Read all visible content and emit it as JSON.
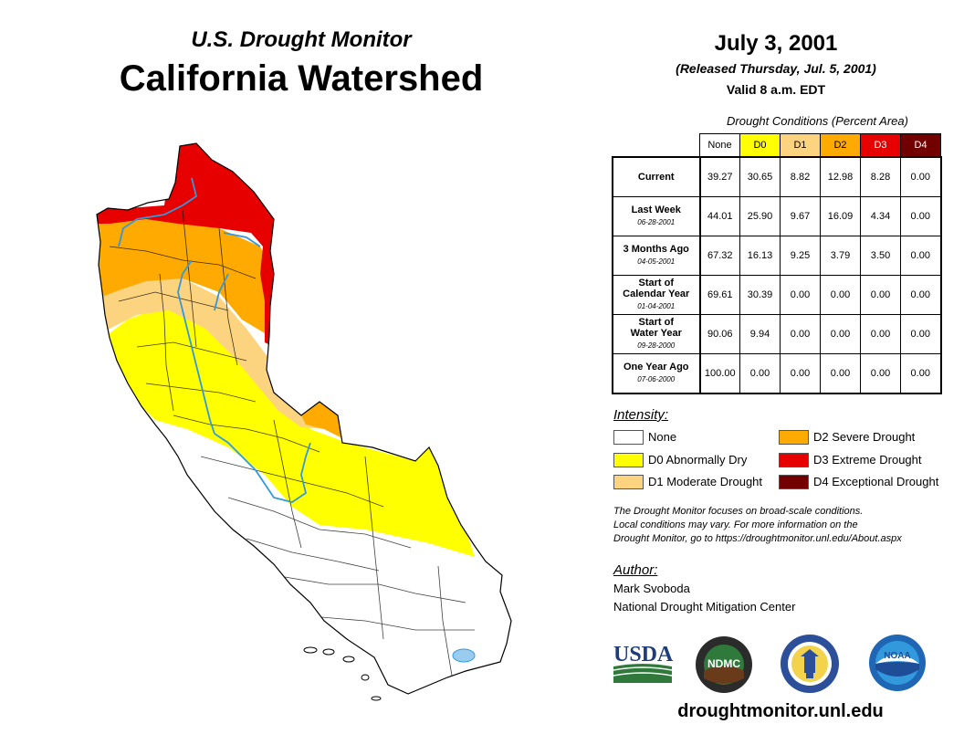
{
  "header": {
    "subtitle": "U.S. Drought Monitor",
    "title": "California Watershed",
    "date": "July 3, 2001",
    "released": "(Released Thursday, Jul. 5, 2001)",
    "valid": "Valid 8 a.m. EDT"
  },
  "conditions": {
    "title": "Drought Conditions (Percent Area)",
    "columns": [
      {
        "label": "None",
        "color": "#ffffff",
        "text_color": "#000000"
      },
      {
        "label": "D0",
        "color": "#ffff00",
        "text_color": "#000000"
      },
      {
        "label": "D1",
        "color": "#fcd37f",
        "text_color": "#000000"
      },
      {
        "label": "D2",
        "color": "#ffaa00",
        "text_color": "#000000"
      },
      {
        "label": "D3",
        "color": "#e60000",
        "text_color": "#ffffff"
      },
      {
        "label": "D4",
        "color": "#730000",
        "text_color": "#ffffff"
      }
    ],
    "rows": [
      {
        "label": [
          "Current"
        ],
        "date": "",
        "values": [
          "39.27",
          "30.65",
          "8.82",
          "12.98",
          "8.28",
          "0.00"
        ]
      },
      {
        "label": [
          "Last Week"
        ],
        "date": "06-28-2001",
        "values": [
          "44.01",
          "25.90",
          "9.67",
          "16.09",
          "4.34",
          "0.00"
        ]
      },
      {
        "label": [
          "3 Months Ago"
        ],
        "date": "04-05-2001",
        "values": [
          "67.32",
          "16.13",
          "9.25",
          "3.79",
          "3.50",
          "0.00"
        ]
      },
      {
        "label": [
          "Start of",
          "Calendar Year"
        ],
        "date": "01-04-2001",
        "values": [
          "69.61",
          "30.39",
          "0.00",
          "0.00",
          "0.00",
          "0.00"
        ]
      },
      {
        "label": [
          "Start of",
          "Water Year"
        ],
        "date": "09-28-2000",
        "values": [
          "90.06",
          "9.94",
          "0.00",
          "0.00",
          "0.00",
          "0.00"
        ]
      },
      {
        "label": [
          "One Year Ago"
        ],
        "date": "07-06-2000",
        "values": [
          "100.00",
          "0.00",
          "0.00",
          "0.00",
          "0.00",
          "0.00"
        ]
      }
    ]
  },
  "legend": {
    "title": "Intensity:",
    "items": [
      {
        "label": "None",
        "color": "#ffffff"
      },
      {
        "label": "D0 Abnormally Dry",
        "color": "#ffff00"
      },
      {
        "label": "D1 Moderate Drought",
        "color": "#fcd37f"
      },
      {
        "label": "D2 Severe Drought",
        "color": "#ffaa00"
      },
      {
        "label": "D3 Extreme Drought",
        "color": "#e60000"
      },
      {
        "label": "D4 Exceptional Drought",
        "color": "#730000"
      }
    ]
  },
  "note": {
    "line1": "The Drought Monitor focuses on broad-scale conditions.",
    "line2": "Local conditions may vary. For more information on the",
    "line3": "Drought Monitor, go to https://droughtmonitor.unl.edu/About.aspx"
  },
  "author": {
    "title": "Author:",
    "name": "Mark Svoboda",
    "org": "National Drought Mitigation Center"
  },
  "logos": {
    "usda": "USDA",
    "ndmc": "NDMC",
    "noaa": "NOAA"
  },
  "footer_url": "droughtmonitor.unl.edu",
  "map_colors": {
    "none": "#ffffff",
    "d0": "#ffff00",
    "d1": "#fcd37f",
    "d2": "#ffaa00",
    "d3": "#e60000",
    "river": "#3399dd",
    "border": "#000000"
  }
}
